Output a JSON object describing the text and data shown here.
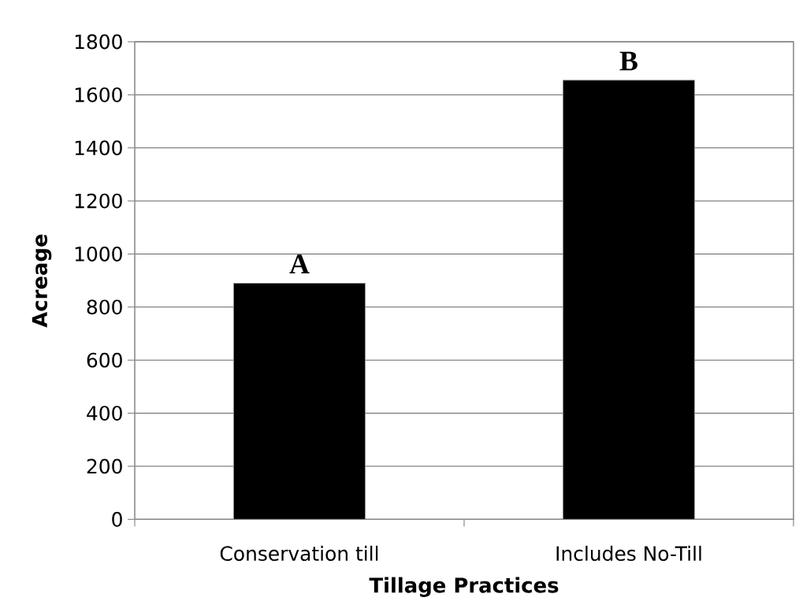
{
  "chart_data": {
    "type": "bar",
    "xlabel": "Tillage Practices",
    "ylabel": "Acreage",
    "categories": [
      "Conservation till",
      "Includes No-Till"
    ],
    "values": [
      890,
      1655
    ],
    "color": "#000000",
    "ylim": [
      0,
      1800
    ],
    "yticks": [
      0,
      200,
      400,
      600,
      800,
      1000,
      1200,
      1400,
      1600,
      1800
    ],
    "grid": "y",
    "annotations": [
      {
        "text": "A",
        "x": "Conservation till",
        "y": 890
      },
      {
        "text": "B",
        "x": "Includes No-Till",
        "y": 1655
      }
    ]
  }
}
